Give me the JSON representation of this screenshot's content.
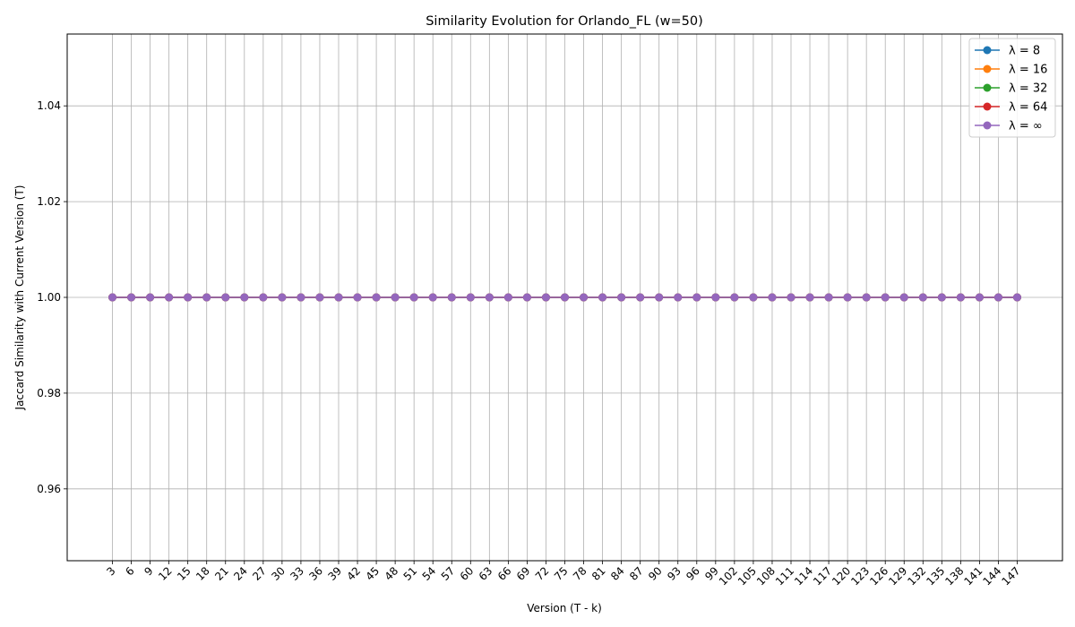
{
  "chart_data": {
    "type": "line",
    "title": "Similarity Evolution for Orlando_FL (w=50)",
    "xlabel": "Version (T - k)",
    "ylabel": "Jaccard Similarity with Current Version (T)",
    "x": [
      3,
      6,
      9,
      12,
      15,
      18,
      21,
      24,
      27,
      30,
      33,
      36,
      39,
      42,
      45,
      48,
      51,
      54,
      57,
      60,
      63,
      66,
      69,
      72,
      75,
      78,
      81,
      84,
      87,
      90,
      93,
      96,
      99,
      102,
      105,
      108,
      111,
      114,
      117,
      120,
      123,
      126,
      129,
      132,
      135,
      138,
      141,
      144,
      147
    ],
    "ylim": [
      0.945,
      1.055
    ],
    "yticks": [
      0.96,
      0.98,
      1.0,
      1.02,
      1.04
    ],
    "ytick_labels": [
      "0.96",
      "0.98",
      "1.00",
      "1.02",
      "1.04"
    ],
    "grid": true,
    "legend_position": "top-right",
    "series": [
      {
        "name": "λ = 8",
        "color": "#1f77b4",
        "y_constant": 1.0
      },
      {
        "name": "λ = 16",
        "color": "#ff7f0e",
        "y_constant": 1.0
      },
      {
        "name": "λ = 32",
        "color": "#2ca02c",
        "y_constant": 1.0
      },
      {
        "name": "λ = 64",
        "color": "#d62728",
        "y_constant": 1.0
      },
      {
        "name": "λ = ∞",
        "color": "#9467bd",
        "y_constant": 1.0
      }
    ]
  }
}
